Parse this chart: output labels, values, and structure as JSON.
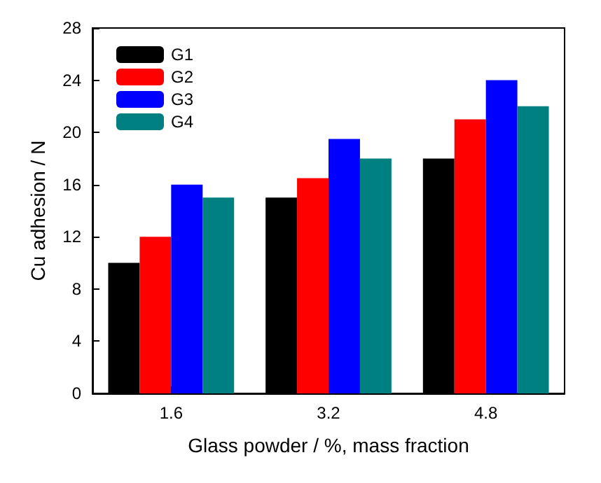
{
  "chart_data": {
    "type": "bar",
    "xlabel": "Glass powder / %, mass fraction",
    "ylabel": "Cu adhesion / N",
    "categories": [
      "1.6",
      "3.2",
      "4.8"
    ],
    "series": [
      {
        "name": "G1",
        "color": "#000000",
        "values": [
          10,
          15,
          18
        ]
      },
      {
        "name": "G2",
        "color": "#ff0000",
        "values": [
          12,
          16.5,
          21
        ]
      },
      {
        "name": "G3",
        "color": "#0000ff",
        "values": [
          16,
          19.5,
          24
        ]
      },
      {
        "name": "G4",
        "color": "#008080",
        "values": [
          15,
          18,
          22
        ]
      }
    ],
    "ylim": [
      0,
      28
    ],
    "yticks": [
      0,
      4,
      8,
      12,
      16,
      20,
      24,
      28
    ],
    "grid": false,
    "legend": "top left"
  }
}
